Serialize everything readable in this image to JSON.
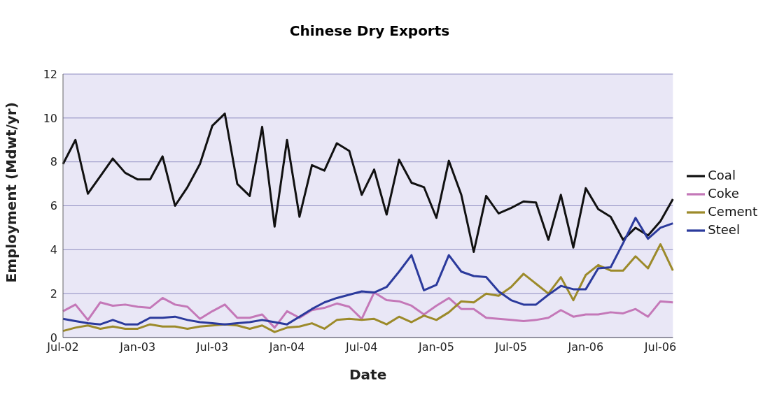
{
  "chart_data": {
    "type": "line",
    "title": "Chinese Dry Exports",
    "xlabel": "Date",
    "ylabel": "Employment (Mdwt/yr)",
    "categories": [
      "Jul-02",
      null,
      null,
      null,
      null,
      null,
      "Jan-03",
      null,
      null,
      null,
      null,
      null,
      "Jul-03",
      null,
      null,
      null,
      null,
      null,
      "Jan-04",
      null,
      null,
      null,
      null,
      null,
      "Jul-04",
      null,
      null,
      null,
      null,
      null,
      "Jan-05",
      null,
      null,
      null,
      null,
      null,
      "Jul-05",
      null,
      null,
      null,
      null,
      null,
      "Jan-06",
      null,
      null,
      null,
      null,
      null,
      "Jul-06",
      null
    ],
    "series": [
      {
        "name": "Coal",
        "color": "#111111",
        "values": [
          7.9,
          9.0,
          6.55,
          7.35,
          8.15,
          7.5,
          7.2,
          7.2,
          8.25,
          6.0,
          6.85,
          7.9,
          9.65,
          10.2,
          7.0,
          6.45,
          9.6,
          5.05,
          9.0,
          5.5,
          7.85,
          7.6,
          8.85,
          8.5,
          6.5,
          7.65,
          5.6,
          8.1,
          7.05,
          6.85,
          5.45,
          8.05,
          6.5,
          3.9,
          6.45,
          5.65,
          5.9,
          6.2,
          6.15,
          4.45,
          6.5,
          4.1,
          6.8,
          5.85,
          5.5,
          4.45,
          5.0,
          4.65,
          5.3,
          6.3
        ]
      },
      {
        "name": "Coke",
        "color": "#c478b8",
        "values": [
          1.2,
          1.5,
          0.8,
          1.6,
          1.45,
          1.5,
          1.4,
          1.35,
          1.8,
          1.5,
          1.4,
          0.85,
          1.2,
          1.5,
          0.9,
          0.9,
          1.05,
          0.45,
          1.2,
          0.9,
          1.25,
          1.35,
          1.55,
          1.4,
          0.85,
          2.05,
          1.7,
          1.65,
          1.45,
          1.05,
          1.45,
          1.8,
          1.3,
          1.3,
          0.9,
          0.85,
          0.8,
          0.75,
          0.8,
          0.9,
          1.25,
          0.95,
          1.05,
          1.05,
          1.15,
          1.1,
          1.3,
          0.95,
          1.65,
          1.6
        ]
      },
      {
        "name": "Cement",
        "color": "#9c8a2a",
        "values": [
          0.3,
          0.45,
          0.55,
          0.4,
          0.5,
          0.4,
          0.4,
          0.6,
          0.5,
          0.5,
          0.4,
          0.5,
          0.55,
          0.6,
          0.55,
          0.4,
          0.55,
          0.25,
          0.45,
          0.5,
          0.65,
          0.4,
          0.8,
          0.85,
          0.8,
          0.85,
          0.6,
          0.95,
          0.7,
          1.0,
          0.8,
          1.15,
          1.65,
          1.6,
          2.0,
          1.9,
          2.3,
          2.9,
          2.45,
          2.0,
          2.75,
          1.7,
          2.85,
          3.3,
          3.05,
          3.05,
          3.7,
          3.15,
          4.25,
          3.05
        ]
      },
      {
        "name": "Steel",
        "color": "#2b3a9c",
        "values": [
          0.85,
          0.75,
          0.65,
          0.6,
          0.8,
          0.6,
          0.6,
          0.9,
          0.9,
          0.95,
          0.8,
          0.7,
          0.65,
          0.6,
          0.65,
          0.7,
          0.8,
          0.7,
          0.6,
          0.95,
          1.3,
          1.6,
          1.8,
          1.95,
          2.1,
          2.05,
          2.3,
          3.0,
          3.75,
          2.15,
          2.4,
          3.75,
          3.0,
          2.8,
          2.75,
          2.1,
          1.7,
          1.5,
          1.5,
          1.95,
          2.35,
          2.2,
          2.2,
          3.15,
          3.2,
          4.3,
          5.45,
          4.5,
          5.0,
          5.2
        ]
      }
    ],
    "ylim": [
      0,
      12
    ],
    "yticks": [
      0,
      2,
      4,
      6,
      8,
      10,
      12
    ],
    "grid": "y",
    "legend": "right",
    "marker": "none",
    "line_style": "solid"
  }
}
